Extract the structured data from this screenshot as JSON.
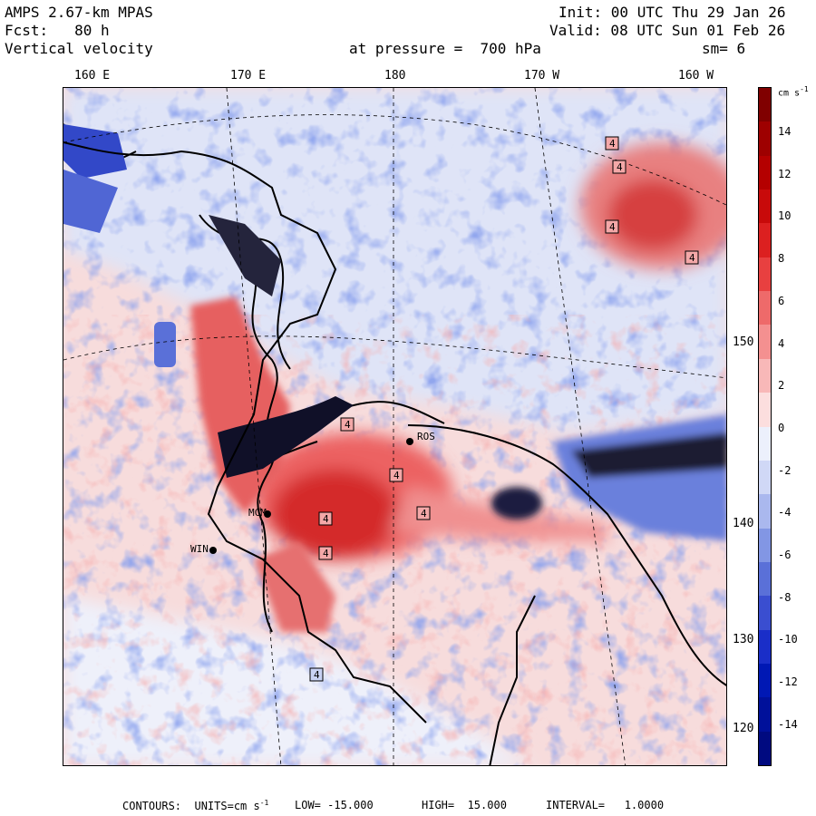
{
  "header": {
    "line1_left": "AMPS 2.67-km MPAS",
    "line2_left": "Fcst:   80 h",
    "line3_left": "Vertical velocity",
    "line1_right": "Init: 00 UTC Thu 29 Jan 26",
    "line2_right": "Valid: 08 UTC Sun 01 Feb 26",
    "pressure": "at pressure =  700 hPa",
    "smooth": "sm= 6"
  },
  "map": {
    "top_longitude_labels": [
      "160 E",
      "170 E",
      "180",
      "170 W",
      "160 W"
    ],
    "right_latitude_labels": [
      "150 W",
      "140 W",
      "130 W",
      "120 W"
    ],
    "station_labels": [
      "MCM",
      "WIN",
      "ROS"
    ],
    "contour_labels": [
      "4"
    ],
    "colors": {
      "strong_up": "#8b0000",
      "moderate_up": "#e63232",
      "weak_up": "#f6c2c2",
      "neutral": "#ffffff",
      "weak_down": "#c8d2f4",
      "moderate_down": "#4058d8",
      "strong_down": "#000080",
      "coastline": "#000000"
    }
  },
  "colorbar": {
    "unit": "cm s",
    "unit_exponent": "-1",
    "ticks": [
      "14",
      "12",
      "10",
      "8",
      "6",
      "4",
      "2",
      "0",
      "-2",
      "-4",
      "-6",
      "-8",
      "-10",
      "-12",
      "-14"
    ],
    "colors": [
      "#800000",
      "#9e0000",
      "#b40000",
      "#c80a0a",
      "#dc2020",
      "#e84040",
      "#ee6a6a",
      "#f49090",
      "#f8b8b8",
      "#fcdede",
      "#ecf0fc",
      "#d0d8f6",
      "#aab8ee",
      "#8296e4",
      "#5a70d8",
      "#3a4ed0",
      "#1a2ec8",
      "#0018b4",
      "#00109a",
      "#000a80"
    ]
  },
  "footer": {
    "contours_label": "CONTOURS:  UNITS=cm s",
    "units_exp": "-1",
    "low": "LOW= -15.000",
    "high": "HIGH=  15.000",
    "interval": "INTERVAL=   1.0000"
  }
}
